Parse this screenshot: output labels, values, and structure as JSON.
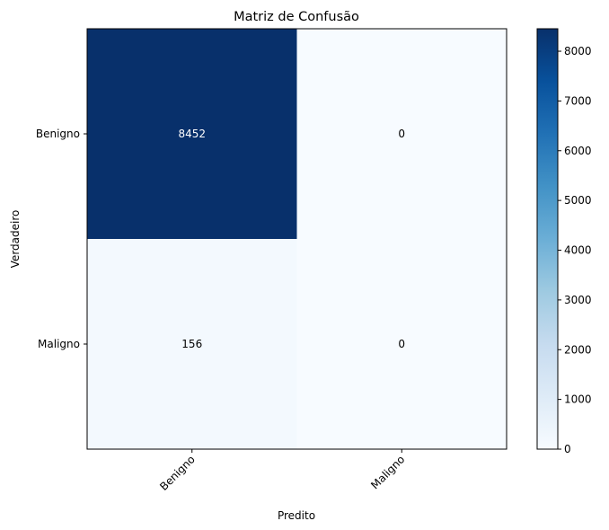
{
  "chart_data": {
    "type": "heatmap",
    "title": "Matriz de Confusão",
    "xlabel": "Predito",
    "ylabel": "Verdadeiro",
    "x_categories": [
      "Benigno",
      "Maligno"
    ],
    "y_categories": [
      "Benigno",
      "Maligno"
    ],
    "values": [
      [
        8452,
        0
      ],
      [
        156,
        0
      ]
    ],
    "colormap": "Blues",
    "colorbar": {
      "min": 0,
      "max": 8452,
      "ticks": [
        0,
        1000,
        2000,
        3000,
        4000,
        5000,
        6000,
        7000,
        8000
      ],
      "tick_labels": [
        "0",
        "1000",
        "2000",
        "3000",
        "4000",
        "5000",
        "6000",
        "7000",
        "8000"
      ]
    },
    "colors": {
      "low": "#f7fbff",
      "high": "#08306b",
      "text_on_dark": "#ffffff",
      "text_on_light": "#000000"
    }
  }
}
